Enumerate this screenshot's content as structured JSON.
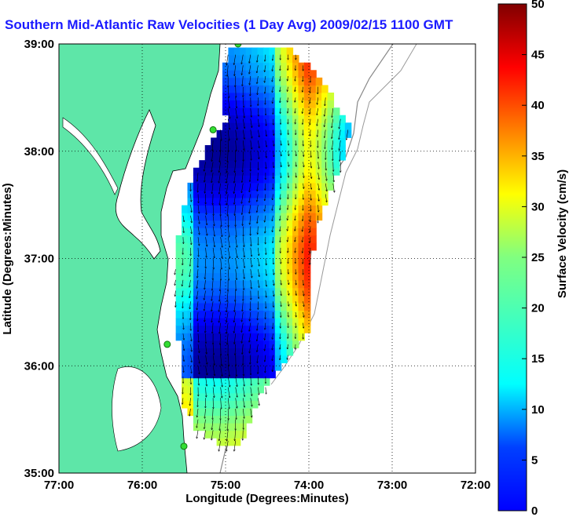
{
  "chart_data": {
    "type": "heatmap",
    "title": "Southern Mid-Atlantic Raw Velocities (1 Day Avg) 2009/02/15 1100 GMT",
    "xlabel": "Longitude (Degrees:Minutes)",
    "ylabel": "Latitude (Degrees:Minutes)",
    "x_ticks": [
      "77:00",
      "76:00",
      "75:00",
      "74:00",
      "73:00",
      "72:00"
    ],
    "y_ticks": [
      "39:00",
      "38:00",
      "37:00",
      "36:00",
      "35:00"
    ],
    "xlim": [
      -77,
      -72
    ],
    "ylim": [
      35,
      39
    ],
    "grid": true,
    "colorbar": {
      "label": "Surface Velocity (cm/s)",
      "ticks": [
        "50",
        "45",
        "40",
        "35",
        "30",
        "25",
        "20",
        "15",
        "10",
        "5",
        "0"
      ],
      "range": [
        0,
        50
      ],
      "colormap": "jet"
    },
    "land_color": "#5ee6a8",
    "ocean_color": "#ffffff",
    "station_color": "#33dd33",
    "stations": [
      {
        "lon": -74.85,
        "lat": 39.0
      },
      {
        "lon": -75.15,
        "lat": 38.2
      },
      {
        "lon": -75.7,
        "lat": 36.2
      },
      {
        "lon": -75.5,
        "lat": 35.25
      }
    ]
  }
}
